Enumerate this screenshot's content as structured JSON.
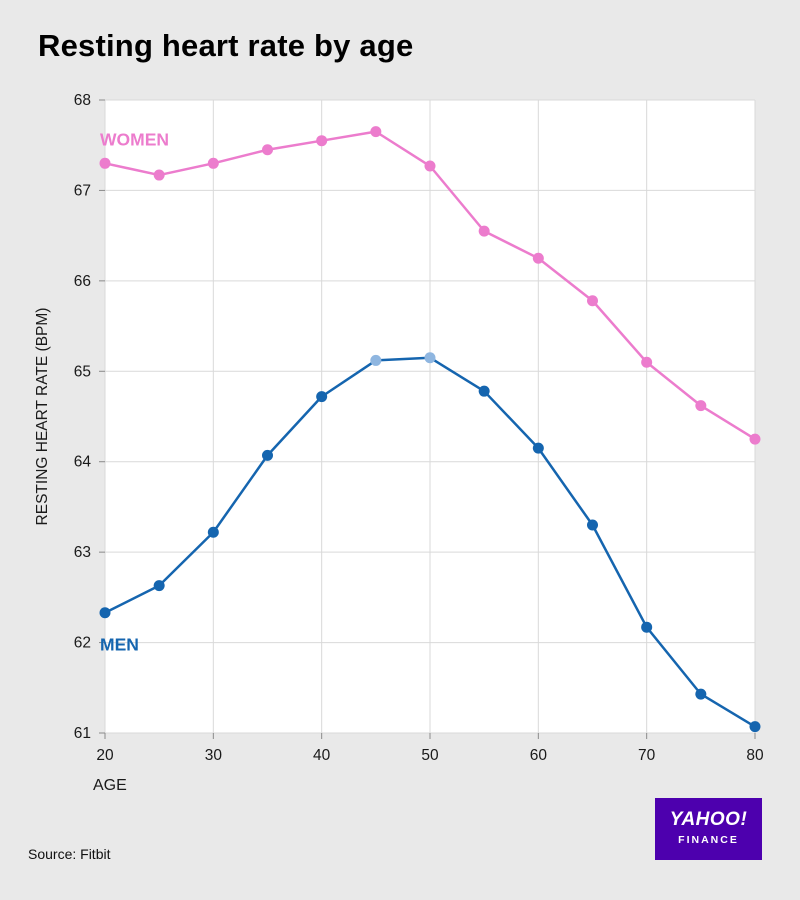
{
  "title": "Resting heart rate by age",
  "source": "Source: Fitbit",
  "logo": {
    "line1": "YAHOO!",
    "line2": "FINANCE",
    "bg_color": "#4d00ae"
  },
  "chart_data": {
    "type": "line",
    "title": "Resting heart rate by age",
    "xlabel": "AGE",
    "ylabel": "RESTING HEART RATE (BPM)",
    "x": [
      20,
      25,
      30,
      35,
      40,
      45,
      50,
      55,
      60,
      65,
      70,
      75,
      80
    ],
    "x_ticks": [
      20,
      30,
      40,
      50,
      60,
      70,
      80
    ],
    "xlim": [
      20,
      80
    ],
    "y_ticks": [
      61,
      62,
      63,
      64,
      65,
      66,
      67,
      68
    ],
    "ylim": [
      61,
      68
    ],
    "grid": true,
    "grid_color": "#d9d9d9",
    "plot_bg_color": "#ffffff",
    "tick_text_color": "#1a1a1a",
    "legend_position": "inline-labels",
    "series": [
      {
        "name": "WOMEN",
        "color": "#ec7ccd",
        "values": [
          67.3,
          67.17,
          67.3,
          67.45,
          67.55,
          67.65,
          67.27,
          66.55,
          66.25,
          65.78,
          65.1,
          64.62,
          64.25
        ]
      },
      {
        "name": "MEN",
        "color": "#1565af",
        "values": [
          62.33,
          62.63,
          63.22,
          64.07,
          64.72,
          65.12,
          65.15,
          64.78,
          64.15,
          63.3,
          62.17,
          61.43,
          61.07
        ],
        "highlight_indices": [
          5,
          6
        ],
        "highlight_color": "#8fb6e0"
      }
    ]
  }
}
